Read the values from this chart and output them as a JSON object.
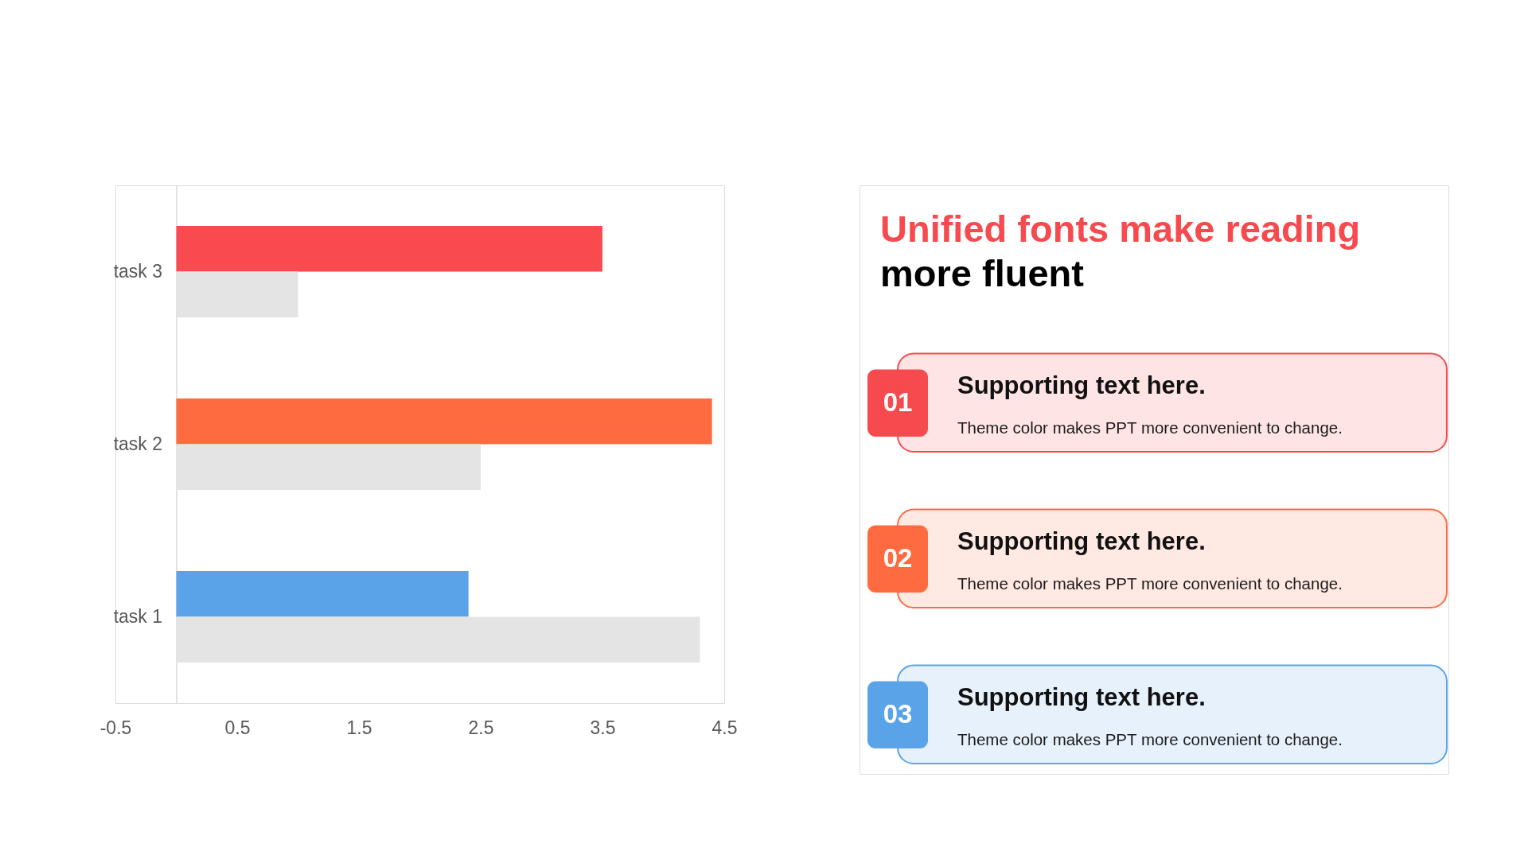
{
  "chart_data": [
    {
      "type": "bar",
      "orientation": "horizontal",
      "categories": [
        "task 3",
        "task 2",
        "task 1"
      ],
      "series": [
        {
          "colors": [
            "#f94b4f",
            "#ff6b40",
            "#5aa3e8"
          ],
          "values": [
            3.5,
            4.4,
            2.4
          ]
        },
        {
          "color": "#e4e4e4",
          "values": [
            1.0,
            2.5,
            4.3
          ]
        }
      ],
      "xlim": [
        -0.5,
        4.5
      ],
      "xticks": [
        -0.5,
        0.5,
        1.5,
        2.5,
        3.5,
        4.5
      ]
    },
    {
      "type": "other",
      "title": "Unified fonts make reading",
      "subtitle": "more fluent",
      "colors": [
        "#f74a4e",
        "#ff6b40",
        "#5aa3e8"
      ],
      "annotations": [
        "01",
        "Supporting text here.",
        "Theme color makes PPT more convenient to change.",
        "02",
        "Supporting text here.",
        "Theme color makes PPT more convenient to change.",
        "03",
        "Supporting text here.",
        "Theme color makes PPT more convenient to change."
      ]
    }
  ]
}
